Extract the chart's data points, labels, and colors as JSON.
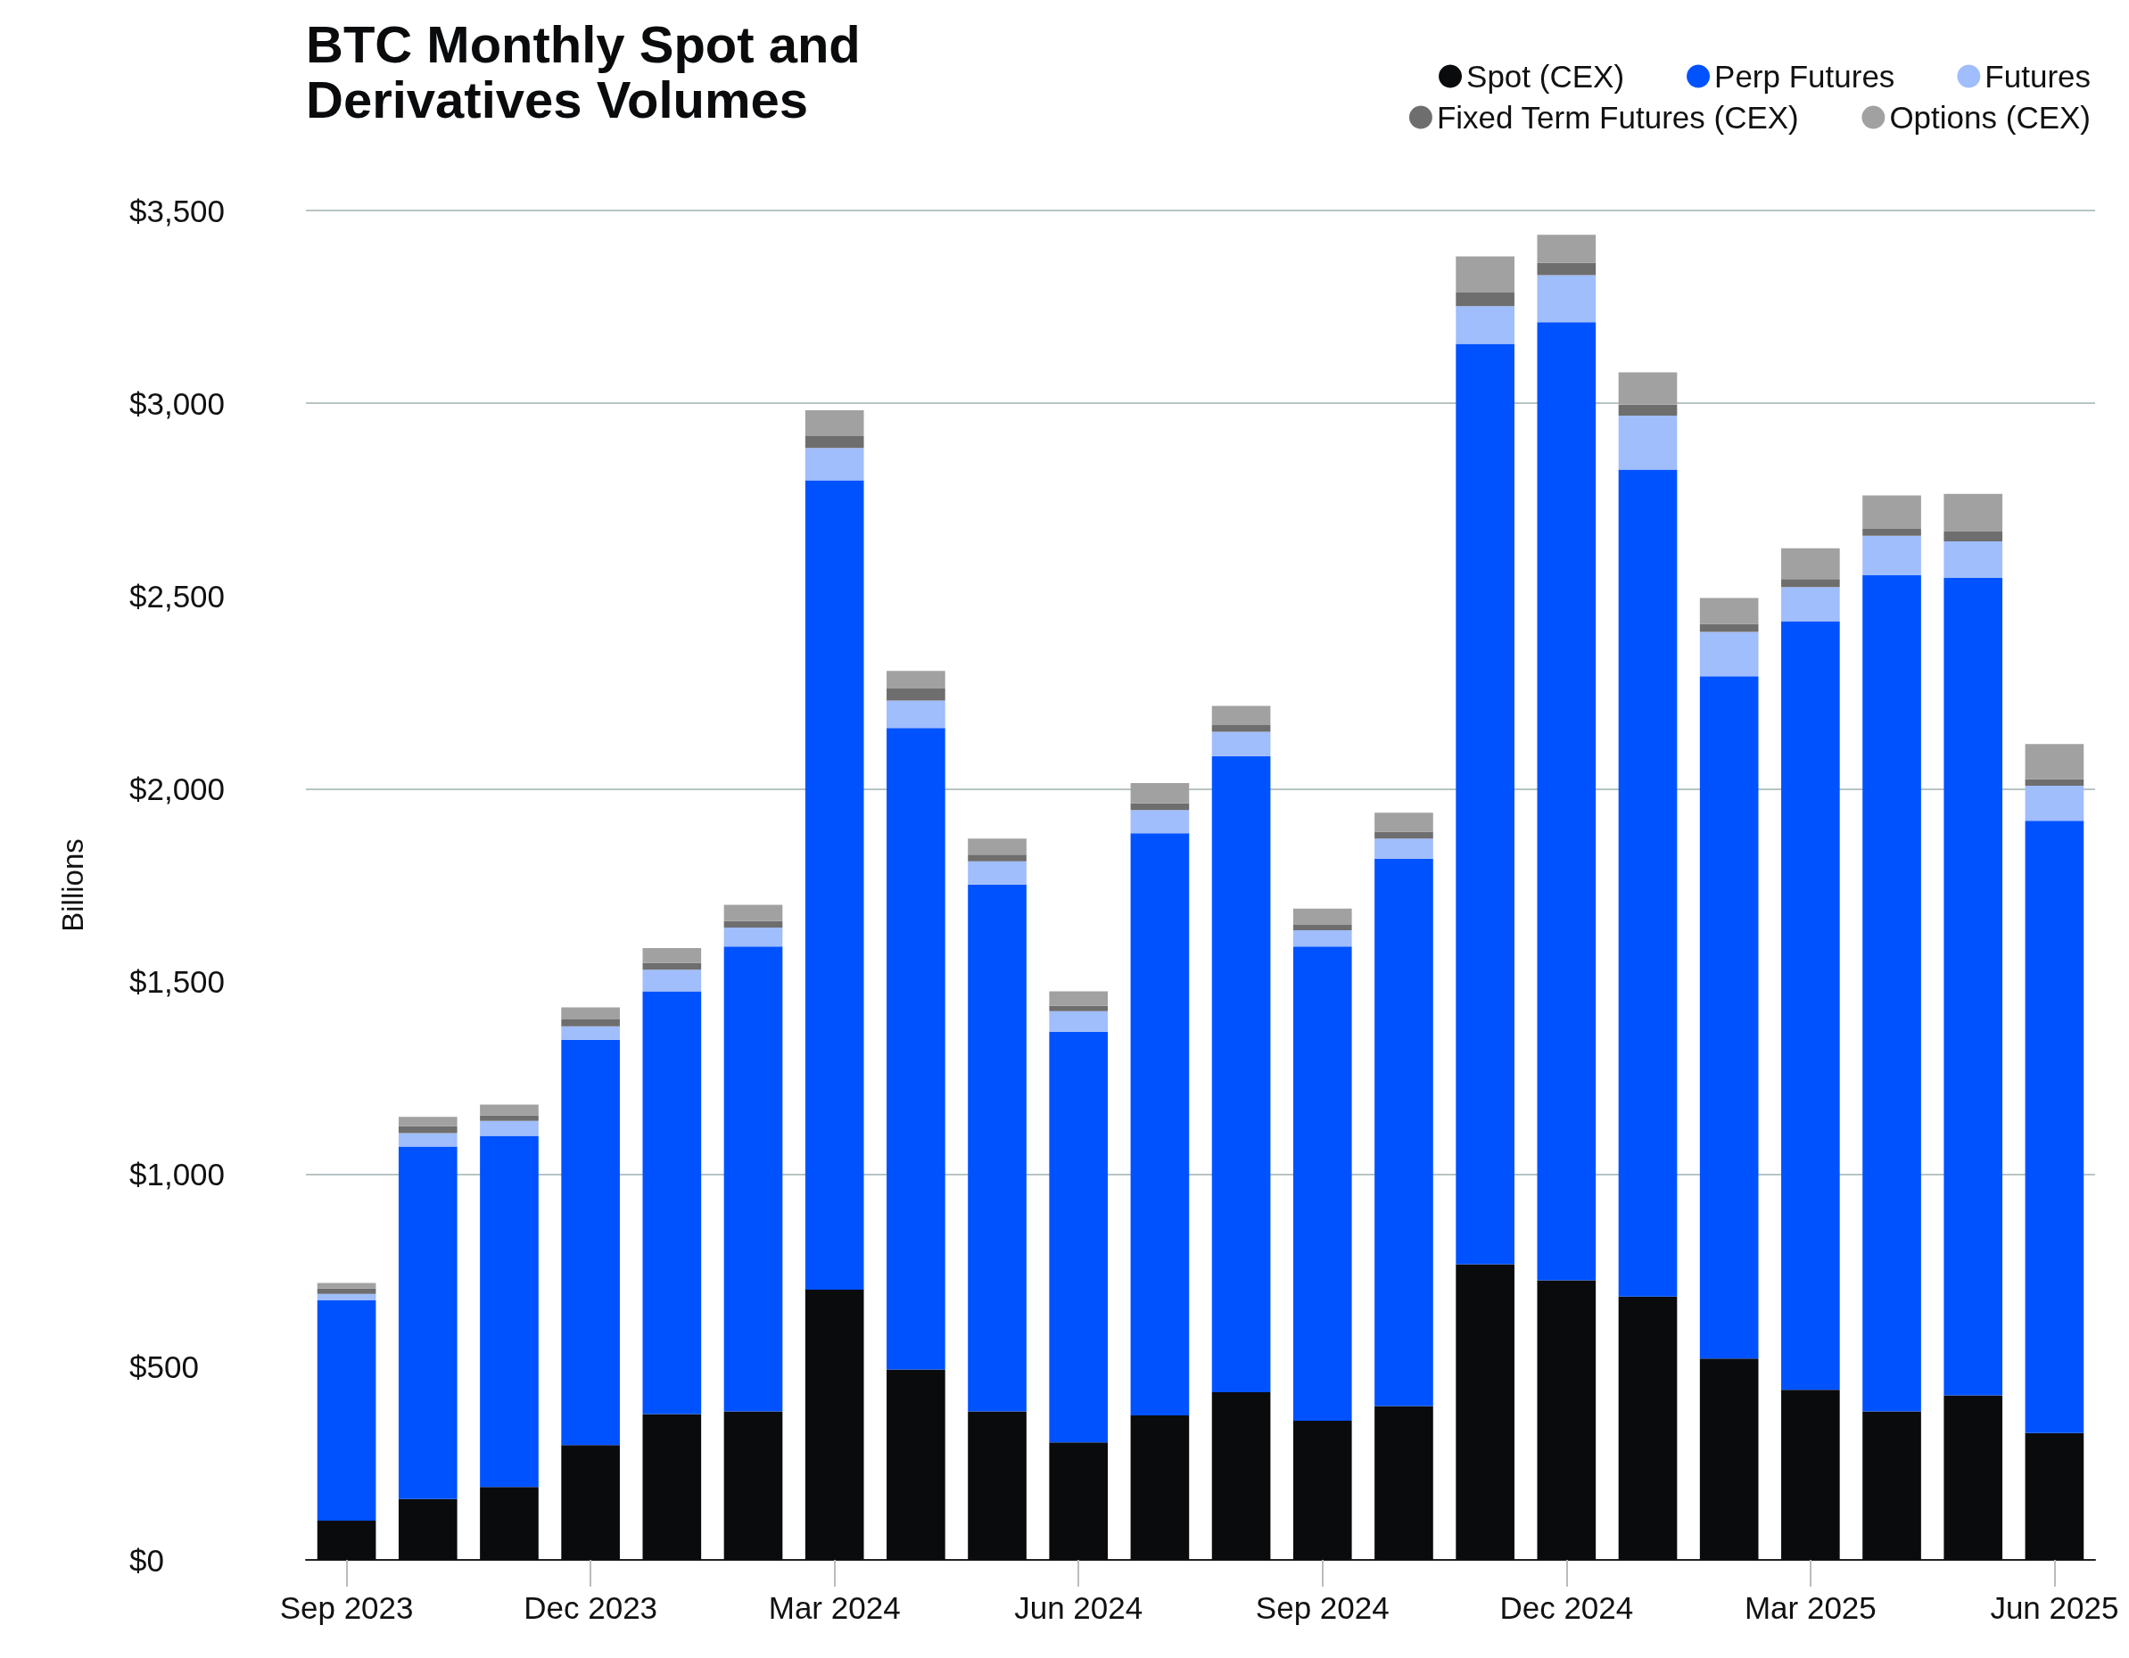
{
  "chart_data": {
    "type": "bar",
    "title": "BTC Monthly Spot and Derivatives Volumes",
    "ylabel": "Billions",
    "categories": [
      "Sep 2023",
      null,
      null,
      "Dec 2023",
      null,
      null,
      "Mar 2024",
      null,
      null,
      "Jun 2024",
      null,
      null,
      "Sep 2024",
      null,
      null,
      "Dec 2024",
      null,
      null,
      "Mar 2025",
      null,
      null,
      "Jun 2025"
    ],
    "series": [
      {
        "name": "Spot (CEX)",
        "color": "#0a0b0d",
        "values": [
          102,
          158,
          189,
          298,
          378,
          385,
          701,
          494,
          385,
          305,
          375,
          435,
          361,
          399,
          767,
          725,
          683,
          522,
          441,
          385,
          427,
          329
        ]
      },
      {
        "name": "Perp Futures",
        "color": "#0052ff",
        "values": [
          571,
          914,
          911,
          1051,
          1097,
          1206,
          2099,
          1664,
          1367,
          1065,
          1510,
          1650,
          1230,
          1420,
          2387,
          2485,
          2145,
          1770,
          1994,
          2169,
          2120,
          1588
        ]
      },
      {
        "name": "Futures",
        "color": "#a0bdfc",
        "values": [
          17,
          35,
          39,
          35,
          56,
          49,
          84,
          71,
          60,
          53,
          60,
          63,
          42,
          52,
          98,
          122,
          140,
          115,
          88,
          102,
          95,
          91
        ]
      },
      {
        "name": "Fixed Term Futures (CEX)",
        "color": "#6e6e6e",
        "values": [
          14,
          18,
          14,
          18,
          18,
          17,
          31,
          31,
          17,
          14,
          17,
          17,
          14,
          18,
          35,
          32,
          28,
          21,
          21,
          18,
          25,
          17
        ]
      },
      {
        "name": "Options (CEX)",
        "color": "#a1a1a1",
        "values": [
          14,
          24,
          28,
          31,
          38,
          42,
          67,
          46,
          42,
          38,
          53,
          50,
          42,
          49,
          94,
          73,
          84,
          67,
          80,
          87,
          98,
          91
        ]
      }
    ],
    "stacked": true,
    "ylim": [
      0,
      3500
    ],
    "yticks": [
      {
        "value": 0,
        "label": "$0"
      },
      {
        "value": 500,
        "label": "$500"
      },
      {
        "value": 1000,
        "label": "$1,000"
      },
      {
        "value": 1500,
        "label": "$1,500"
      },
      {
        "value": 2000,
        "label": "$2,000"
      },
      {
        "value": 2500,
        "label": "$2,500"
      },
      {
        "value": 3000,
        "label": "$3,000"
      },
      {
        "value": 3500,
        "label": "$3,500"
      }
    ],
    "grid": "y",
    "legend": "top right"
  }
}
